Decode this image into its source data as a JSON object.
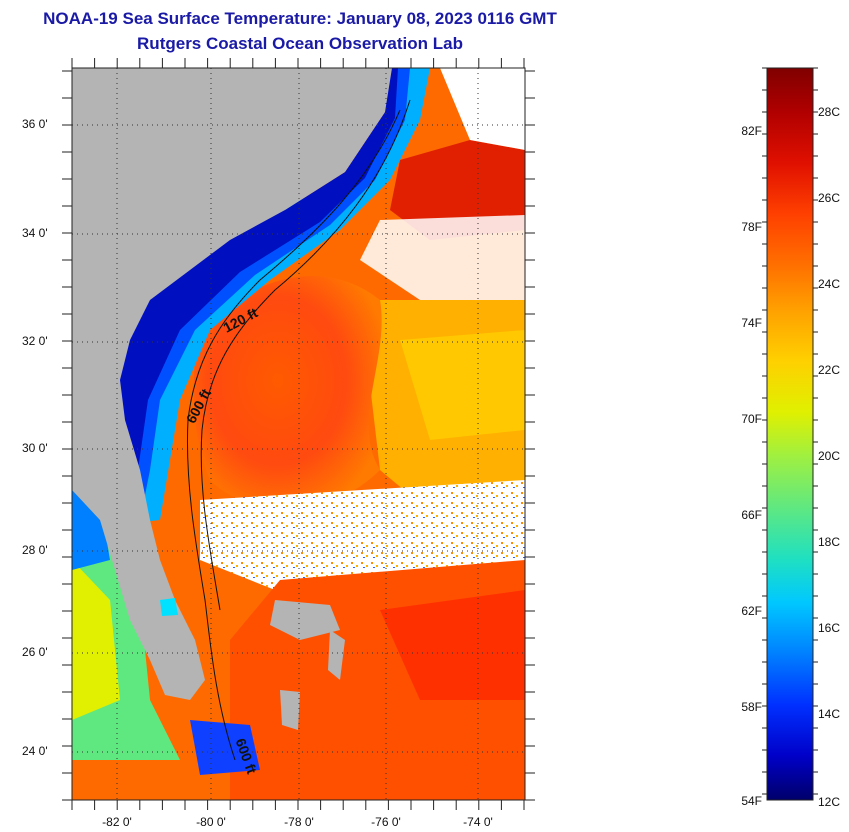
{
  "title": "NOAA-19 Sea Surface Temperature:  January 08, 2023 0116 GMT",
  "subtitle": "Rutgers Coastal Ocean Observation Lab",
  "lat_labels": [
    "36 0'",
    "34 0'",
    "32 0'",
    "30 0'",
    "28 0'",
    "26 0'",
    "24 0'"
  ],
  "lon_labels": [
    "-82 0'",
    "-80 0'",
    "-78 0'",
    "-76 0'",
    "-74 0'"
  ],
  "contour_labels": [
    "120 ft",
    "600 ft",
    "600 ft"
  ],
  "colorbar": {
    "fahrenheit_labels": [
      "82F",
      "78F",
      "74F",
      "70F",
      "66F",
      "62F",
      "58F",
      "54F"
    ],
    "celsius_labels": [
      "28C",
      "26C",
      "24C",
      "22C",
      "20C",
      "18C",
      "16C",
      "14C",
      "12C"
    ],
    "range_c": [
      12,
      29
    ],
    "colors": [
      "#00006a",
      "#0000c8",
      "#0030ff",
      "#0080ff",
      "#00c8ff",
      "#20e0c0",
      "#60e880",
      "#a0f040",
      "#e0f000",
      "#ffd000",
      "#ffa000",
      "#ff7000",
      "#ff4000",
      "#e01000",
      "#b00000",
      "#800000"
    ]
  },
  "colors": {
    "land": "#b4b4b4",
    "title": "#1a1aa6"
  }
}
